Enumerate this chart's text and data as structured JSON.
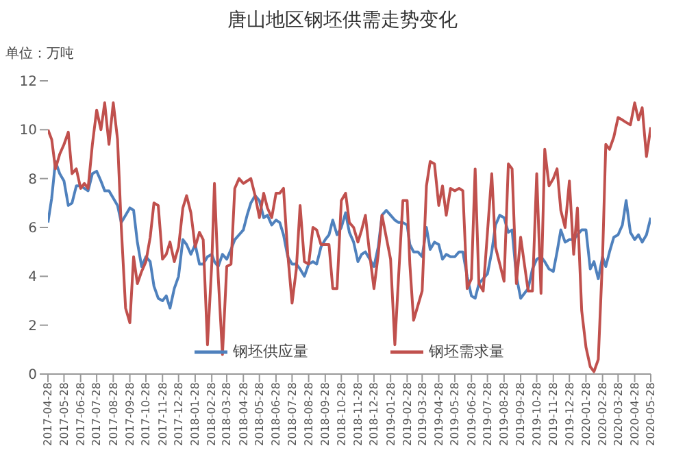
{
  "chart_data": {
    "type": "line",
    "title": "唐山地区钢坯供需走势变化",
    "ylabel": "单位：万吨",
    "x": [
      "2017-04-28",
      "2017-05-05",
      "2017-05-12",
      "2017-05-20",
      "2017-05-28",
      "2017-06-05",
      "2017-06-12",
      "2017-06-20",
      "2017-06-28",
      "2017-07-05",
      "2017-07-12",
      "2017-07-20",
      "2017-07-28",
      "2017-08-05",
      "2017-08-12",
      "2017-08-20",
      "2017-08-28",
      "2017-09-05",
      "2017-09-12",
      "2017-09-20",
      "2017-09-28",
      "2017-10-05",
      "2017-10-12",
      "2017-10-20",
      "2017-10-28",
      "2017-11-05",
      "2017-11-12",
      "2017-11-20",
      "2017-11-28",
      "2017-12-05",
      "2017-12-12",
      "2017-12-20",
      "2017-12-28",
      "2018-01-05",
      "2018-01-12",
      "2018-01-20",
      "2018-01-28",
      "2018-02-05",
      "2018-02-12",
      "2018-02-20",
      "2018-02-28",
      "2018-03-05",
      "2018-03-12",
      "2018-03-20",
      "2018-03-28",
      "2018-04-05",
      "2018-04-12",
      "2018-04-20",
      "2018-04-28",
      "2018-05-05",
      "2018-05-12",
      "2018-05-20",
      "2018-05-28",
      "2018-06-05",
      "2018-06-12",
      "2018-06-20",
      "2018-06-28",
      "2018-07-05",
      "2018-07-12",
      "2018-07-20",
      "2018-07-28",
      "2018-08-05",
      "2018-08-12",
      "2018-08-20",
      "2018-08-28",
      "2018-09-05",
      "2018-09-12",
      "2018-09-20",
      "2018-09-28",
      "2018-10-05",
      "2018-10-12",
      "2018-10-20",
      "2018-10-28",
      "2018-11-05",
      "2018-11-12",
      "2018-11-20",
      "2018-11-28",
      "2018-12-05",
      "2018-12-12",
      "2018-12-20",
      "2018-12-28",
      "2019-01-05",
      "2019-01-12",
      "2019-01-20",
      "2019-01-28",
      "2019-02-05",
      "2019-02-12",
      "2019-02-20",
      "2019-02-28",
      "2019-03-05",
      "2019-03-12",
      "2019-03-20",
      "2019-03-28",
      "2019-04-05",
      "2019-04-12",
      "2019-04-20",
      "2019-04-28",
      "2019-05-05",
      "2019-05-12",
      "2019-05-20",
      "2019-05-28",
      "2019-06-05",
      "2019-06-12",
      "2019-06-20",
      "2019-06-28",
      "2019-07-05",
      "2019-07-12",
      "2019-07-20",
      "2019-07-28",
      "2019-08-05",
      "2019-08-12",
      "2019-08-20",
      "2019-08-28",
      "2019-09-05",
      "2019-09-12",
      "2019-09-20",
      "2019-09-28",
      "2019-10-05",
      "2019-10-12",
      "2019-10-20",
      "2019-10-28",
      "2019-11-05",
      "2019-11-12",
      "2019-11-20",
      "2019-11-28",
      "2019-12-05",
      "2019-12-12",
      "2019-12-20",
      "2019-12-28",
      "2020-01-05",
      "2020-01-12",
      "2020-01-20",
      "2020-01-28",
      "2020-02-05",
      "2020-02-12",
      "2020-02-20",
      "2020-02-28",
      "2020-03-05",
      "2020-03-12",
      "2020-03-20",
      "2020-03-28",
      "2020-04-05",
      "2020-04-12",
      "2020-04-20",
      "2020-04-28",
      "2020-05-05",
      "2020-05-12",
      "2020-05-20",
      "2020-05-28"
    ],
    "series": [
      {
        "name": "钢坯供应量",
        "color": "#4f81bd",
        "values": [
          6.2,
          7.2,
          8.7,
          8.2,
          7.9,
          6.9,
          7.0,
          7.7,
          7.7,
          7.6,
          7.5,
          8.2,
          8.3,
          7.9,
          7.5,
          7.5,
          7.2,
          6.9,
          6.2,
          6.5,
          6.8,
          6.7,
          5.4,
          4.4,
          4.8,
          4.6,
          3.6,
          3.1,
          3.0,
          3.2,
          2.7,
          3.5,
          4.0,
          5.5,
          5.3,
          4.9,
          5.3,
          4.5,
          4.5,
          4.8,
          4.9,
          4.6,
          4.4,
          4.9,
          4.7,
          5.1,
          5.5,
          5.7,
          5.9,
          6.5,
          7.0,
          7.3,
          7.1,
          6.4,
          6.5,
          6.1,
          6.3,
          6.2,
          5.7,
          4.8,
          4.5,
          4.5,
          4.3,
          4.0,
          4.5,
          4.6,
          4.5,
          5.2,
          5.5,
          5.7,
          6.3,
          5.7,
          6.0,
          6.6,
          5.8,
          5.4,
          4.6,
          4.9,
          5.0,
          4.7,
          4.4,
          5.2,
          6.5,
          6.7,
          6.5,
          6.3,
          6.2,
          6.2,
          6.1,
          5.3,
          5.0,
          5.0,
          4.8,
          6.0,
          5.1,
          5.4,
          5.3,
          4.7,
          4.9,
          4.8,
          4.8,
          5.0,
          5.0,
          4.0,
          3.2,
          3.1,
          3.7,
          3.9,
          4.1,
          5.0,
          6.1,
          6.5,
          6.4,
          5.8,
          5.9,
          4.0,
          3.1,
          3.3,
          3.5,
          4.3,
          4.7,
          4.8,
          4.6,
          4.3,
          4.2,
          5.0,
          5.9,
          5.4,
          5.5,
          5.5,
          5.7,
          5.9,
          5.9,
          4.3,
          4.6,
          3.9,
          4.8,
          4.4,
          5.0,
          5.6,
          5.7,
          6.1,
          7.1,
          5.8,
          5.5,
          5.7,
          5.4,
          5.7,
          6.4
        ]
      },
      {
        "name": "钢坯需求量",
        "color": "#c0504d",
        "values": [
          10.0,
          9.6,
          8.4,
          9.0,
          9.4,
          9.9,
          8.2,
          8.4,
          7.6,
          7.8,
          7.6,
          9.4,
          10.8,
          10.0,
          11.1,
          9.4,
          11.1,
          9.6,
          6.0,
          2.7,
          2.1,
          4.8,
          3.7,
          4.2,
          4.6,
          5.6,
          7.0,
          6.9,
          4.7,
          4.9,
          5.4,
          4.6,
          5.2,
          6.8,
          7.3,
          6.6,
          5.2,
          5.8,
          5.5,
          1.2,
          4.5,
          7.8,
          4.0,
          0.8,
          4.4,
          4.5,
          7.6,
          8.0,
          7.8,
          7.9,
          8.0,
          7.3,
          6.4,
          7.4,
          6.8,
          6.4,
          7.4,
          7.4,
          7.6,
          4.9,
          2.9,
          4.3,
          6.9,
          4.6,
          4.5,
          6.0,
          5.9,
          5.3,
          5.3,
          5.3,
          3.5,
          3.5,
          7.1,
          7.4,
          6.2,
          6.0,
          5.4,
          5.9,
          6.5,
          4.9,
          3.5,
          4.9,
          6.5,
          5.6,
          4.7,
          1.2,
          4.0,
          7.1,
          7.1,
          4.5,
          2.2,
          2.8,
          3.4,
          7.7,
          8.7,
          8.6,
          6.9,
          7.7,
          6.5,
          7.6,
          7.5,
          7.6,
          7.5,
          3.5,
          3.9,
          8.4,
          3.7,
          3.4,
          5.8,
          8.2,
          5.2,
          4.5,
          3.8,
          8.6,
          8.4,
          3.7,
          5.6,
          4.5,
          3.4,
          3.4,
          8.2,
          3.3,
          9.2,
          7.7,
          8.0,
          8.4,
          6.7,
          6.0,
          7.9,
          4.9,
          6.8,
          2.6,
          1.1,
          0.3,
          0.1,
          0.6,
          4.8,
          9.4,
          9.2,
          9.7,
          10.5,
          10.4,
          10.3,
          10.2,
          11.1,
          10.4,
          10.9,
          8.9,
          10.1
        ]
      }
    ],
    "xlim": [
      "2017-04-28",
      "2020-05-28"
    ],
    "xticks": [
      "2017-04-28",
      "2017-05-28",
      "2017-06-28",
      "2017-07-28",
      "2017-08-28",
      "2017-09-28",
      "2017-10-28",
      "2017-11-28",
      "2017-12-28",
      "2018-01-28",
      "2018-02-28",
      "2018-03-28",
      "2018-04-28",
      "2018-05-28",
      "2018-06-28",
      "2018-07-28",
      "2018-08-28",
      "2018-09-28",
      "2018-10-28",
      "2018-11-28",
      "2018-12-28",
      "2019-01-28",
      "2019-02-28",
      "2019-03-28",
      "2019-04-28",
      "2019-05-28",
      "2019-06-28",
      "2019-07-28",
      "2019-08-28",
      "2019-09-28",
      "2019-10-28",
      "2019-11-28",
      "2019-12-28",
      "2020-01-28",
      "2020-02-28",
      "2020-03-28",
      "2020-04-28",
      "2020-05-28"
    ],
    "ylim": [
      0,
      12
    ],
    "yticks": [
      0,
      2,
      4,
      6,
      8,
      10,
      12
    ],
    "grid": false,
    "legend": "bottom",
    "marker": "none",
    "line_style": "solid"
  }
}
